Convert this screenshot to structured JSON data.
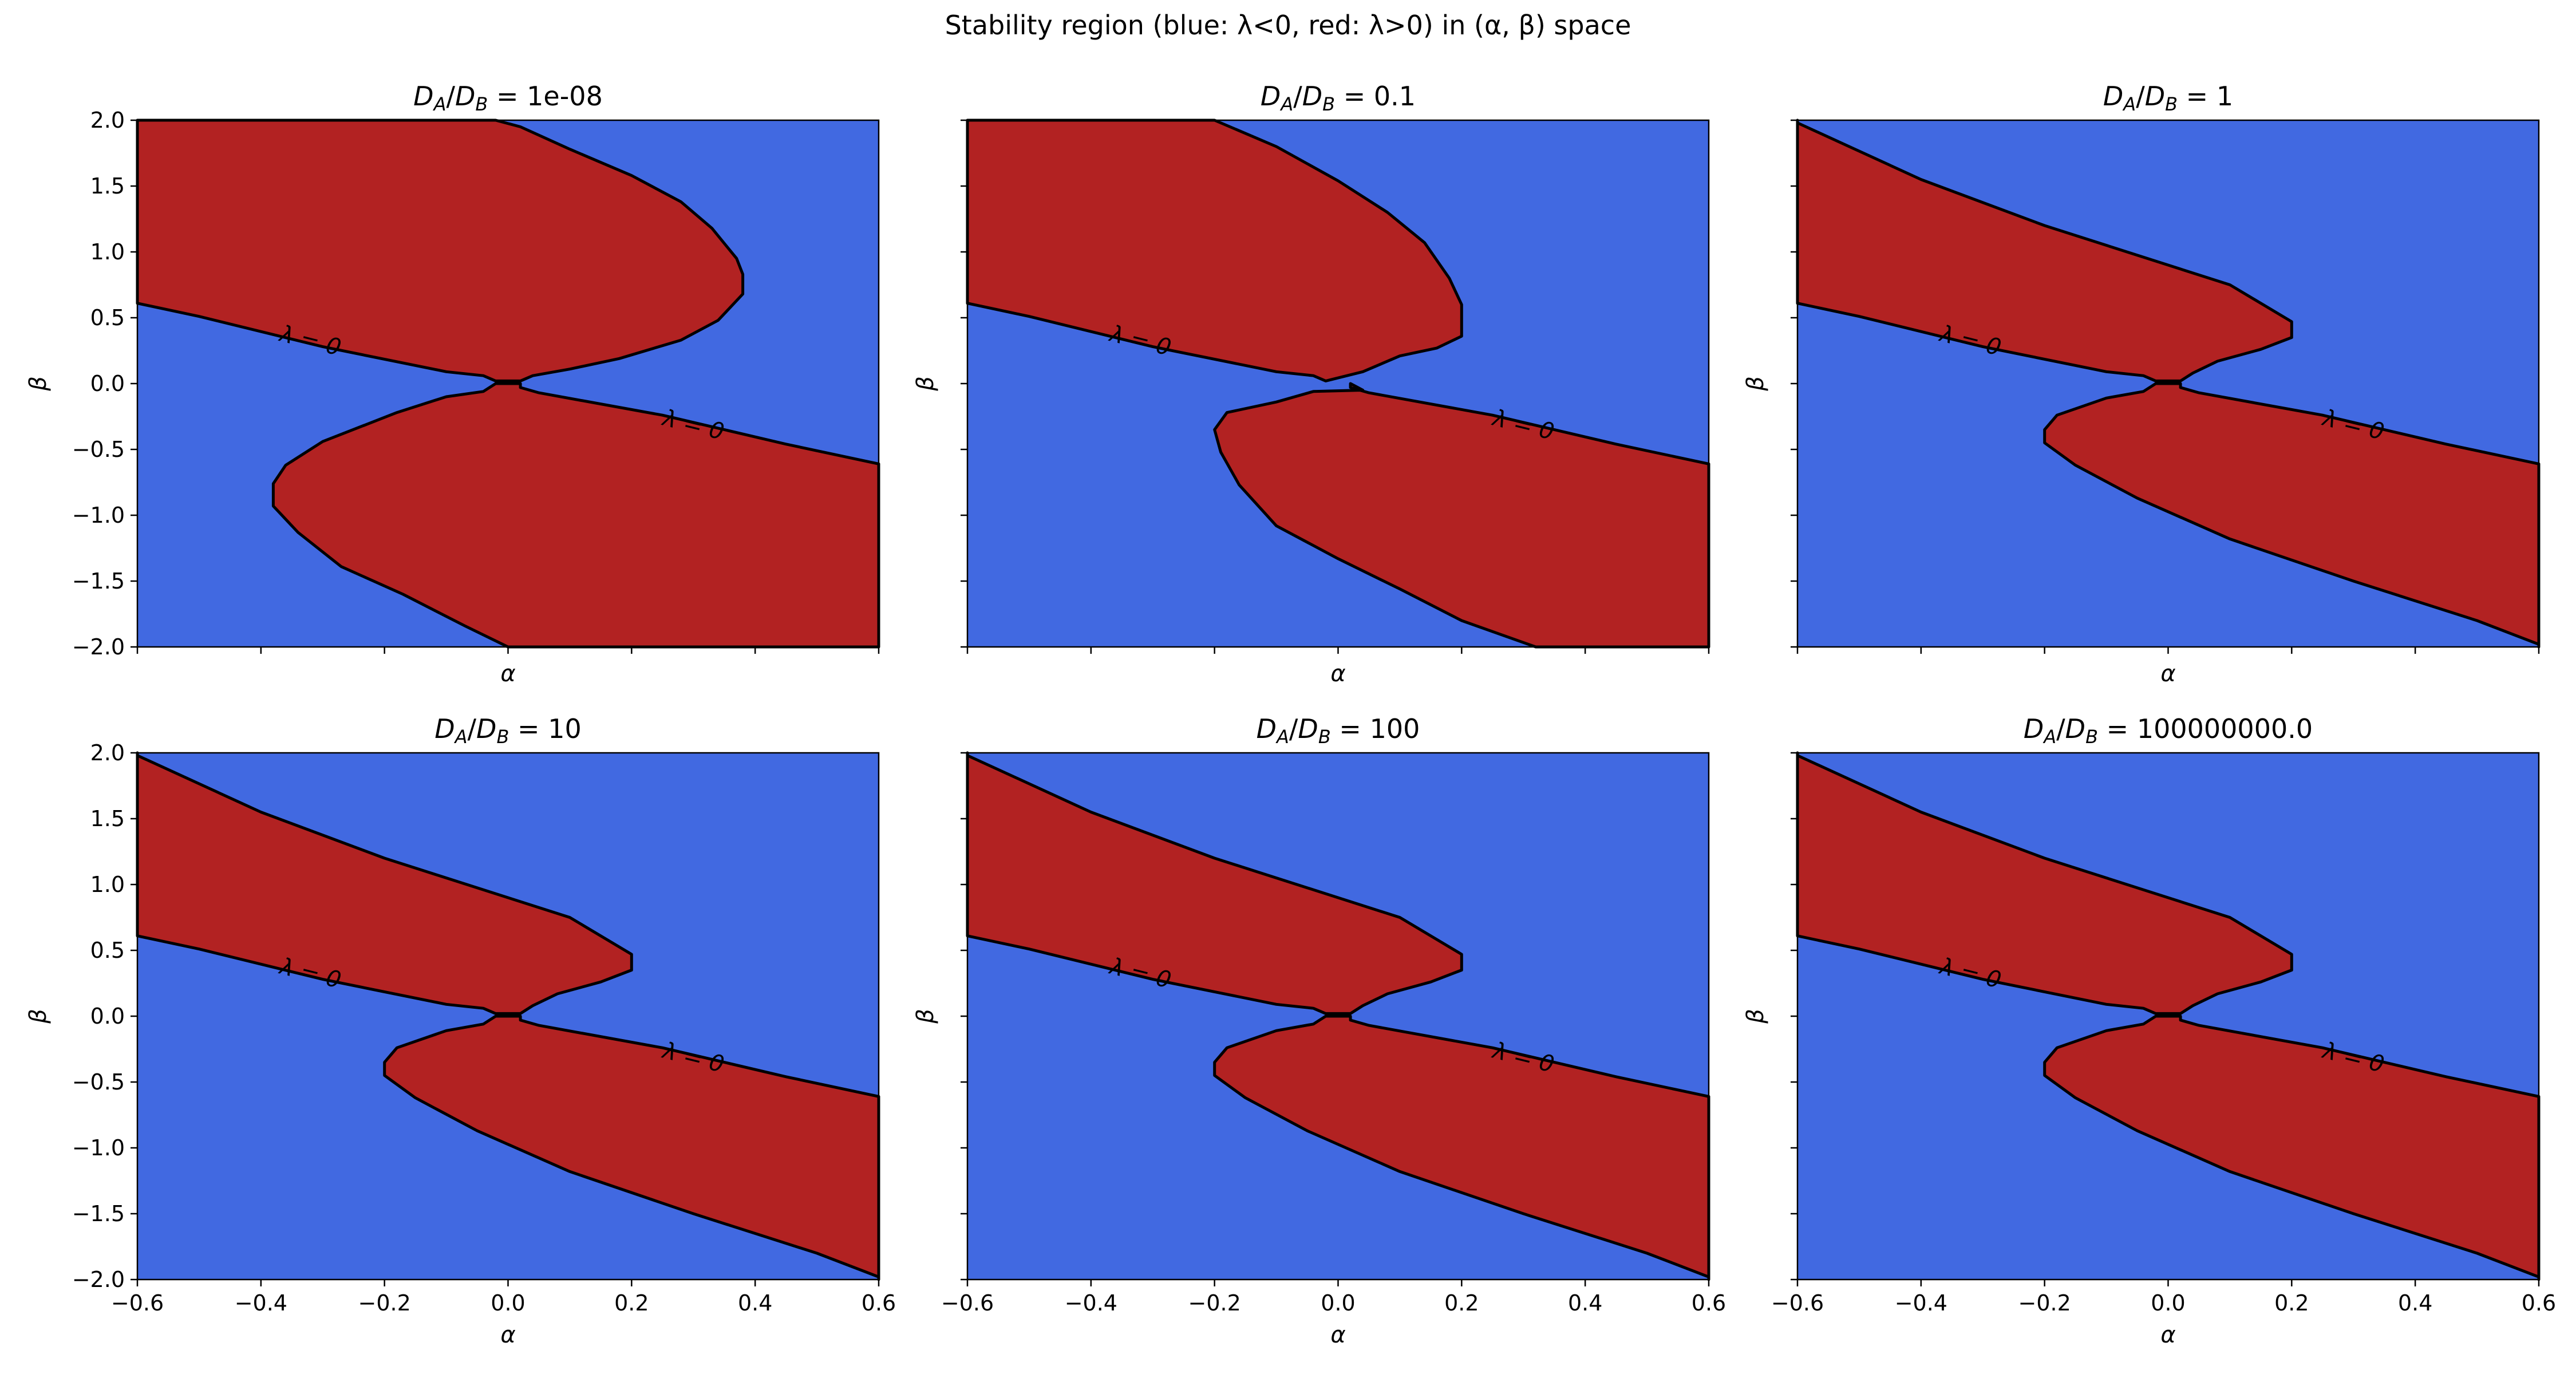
{
  "figure": {
    "title": "Stability region (blue: λ<0, red: λ>0) in (α, β) space"
  },
  "colors": {
    "stable": "#4169e1",
    "unstable": "#b22222",
    "contour": "#000000"
  },
  "chart_data": [
    {
      "type": "heatmap",
      "title": "D_A/D_B = 1e-08",
      "ratio": "1e-08",
      "xlabel": "α",
      "ylabel": "β",
      "xlim": [
        -0.6,
        0.6
      ],
      "ylim": [
        -2.0,
        2.0
      ],
      "x_ticks": [
        -0.6,
        -0.4,
        -0.2,
        0.0,
        0.2,
        0.4,
        0.6
      ],
      "y_ticks": [
        -2.0,
        -1.5,
        -1.0,
        -0.5,
        0.0,
        0.5,
        1.0,
        1.5,
        2.0
      ],
      "show_xticklabels": false,
      "show_yticklabels": true,
      "regions": {
        "blue": "λ<0",
        "red": "λ>0"
      },
      "contour_label": "λ = 0",
      "upper_region": [
        [
          -0.6,
          2.0
        ],
        [
          -0.02,
          2.0
        ],
        [
          0.02,
          1.95
        ],
        [
          0.1,
          1.78
        ],
        [
          0.2,
          1.58
        ],
        [
          0.28,
          1.38
        ],
        [
          0.33,
          1.18
        ],
        [
          0.37,
          0.95
        ],
        [
          0.38,
          0.83
        ],
        [
          0.38,
          0.68
        ],
        [
          0.34,
          0.48
        ],
        [
          0.28,
          0.33
        ],
        [
          0.18,
          0.19
        ],
        [
          0.1,
          0.11
        ],
        [
          0.04,
          0.06
        ],
        [
          0.02,
          0.02
        ],
        [
          -0.02,
          0.02
        ],
        [
          -0.04,
          0.06
        ],
        [
          -0.1,
          0.09
        ],
        [
          -0.3,
          0.28
        ],
        [
          -0.5,
          0.51
        ],
        [
          -0.6,
          0.61
        ]
      ],
      "lower_region": [
        [
          0.6,
          -0.61
        ],
        [
          0.45,
          -0.46
        ],
        [
          0.25,
          -0.24
        ],
        [
          0.05,
          -0.07
        ],
        [
          0.02,
          -0.03
        ],
        [
          0.02,
          0.0
        ],
        [
          -0.02,
          0.0
        ],
        [
          -0.04,
          -0.06
        ],
        [
          -0.1,
          -0.1
        ],
        [
          -0.18,
          -0.22
        ],
        [
          -0.3,
          -0.44
        ],
        [
          -0.36,
          -0.62
        ],
        [
          -0.38,
          -0.76
        ],
        [
          -0.38,
          -0.93
        ],
        [
          -0.34,
          -1.13
        ],
        [
          -0.27,
          -1.39
        ],
        [
          -0.17,
          -1.6
        ],
        [
          -0.07,
          -1.84
        ],
        [
          0.0,
          -2.0
        ],
        [
          0.6,
          -2.0
        ]
      ],
      "contour_labels": [
        [
          -0.32,
          0.32
        ],
        [
          0.3,
          -0.32
        ]
      ]
    },
    {
      "type": "heatmap",
      "title": "D_A/D_B = 0.1",
      "ratio": "0.1",
      "xlabel": "α",
      "ylabel": "β",
      "xlim": [
        -0.6,
        0.6
      ],
      "ylim": [
        -2.0,
        2.0
      ],
      "x_ticks": [
        -0.6,
        -0.4,
        -0.2,
        0.0,
        0.2,
        0.4,
        0.6
      ],
      "y_ticks": [
        -2.0,
        -1.5,
        -1.0,
        -0.5,
        0.0,
        0.5,
        1.0,
        1.5,
        2.0
      ],
      "show_xticklabels": false,
      "show_yticklabels": false,
      "regions": {
        "blue": "λ<0",
        "red": "λ>0"
      },
      "contour_label": "λ = 0",
      "upper_region": [
        [
          -0.6,
          2.0
        ],
        [
          -0.2,
          2.0
        ],
        [
          -0.1,
          1.8
        ],
        [
          0.0,
          1.54
        ],
        [
          0.08,
          1.3
        ],
        [
          0.14,
          1.07
        ],
        [
          0.18,
          0.8
        ],
        [
          0.2,
          0.6
        ],
        [
          0.2,
          0.36
        ],
        [
          0.16,
          0.27
        ],
        [
          0.1,
          0.21
        ],
        [
          0.04,
          0.09
        ],
        [
          -0.02,
          0.02
        ],
        [
          -0.04,
          0.06
        ],
        [
          -0.1,
          0.09
        ],
        [
          -0.3,
          0.28
        ],
        [
          -0.5,
          0.51
        ],
        [
          -0.6,
          0.61
        ]
      ],
      "lower_region": [
        [
          0.6,
          -0.61
        ],
        [
          0.45,
          -0.46
        ],
        [
          0.25,
          -0.24
        ],
        [
          0.05,
          -0.07
        ],
        [
          0.02,
          -0.03
        ],
        [
          0.02,
          0.0
        ],
        [
          0.04,
          -0.05
        ],
        [
          -0.04,
          -0.06
        ],
        [
          -0.1,
          -0.14
        ],
        [
          -0.18,
          -0.22
        ],
        [
          -0.2,
          -0.35
        ],
        [
          -0.19,
          -0.52
        ],
        [
          -0.16,
          -0.77
        ],
        [
          -0.1,
          -1.08
        ],
        [
          0.0,
          -1.33
        ],
        [
          0.1,
          -1.56
        ],
        [
          0.2,
          -1.8
        ],
        [
          0.32,
          -2.0
        ],
        [
          0.6,
          -2.0
        ]
      ],
      "contour_labels": [
        [
          -0.32,
          0.32
        ],
        [
          0.3,
          -0.32
        ]
      ]
    },
    {
      "type": "heatmap",
      "title": "D_A/D_B = 1",
      "ratio": "1",
      "xlabel": "α",
      "ylabel": "β",
      "xlim": [
        -0.6,
        0.6
      ],
      "ylim": [
        -2.0,
        2.0
      ],
      "x_ticks": [
        -0.6,
        -0.4,
        -0.2,
        0.0,
        0.2,
        0.4,
        0.6
      ],
      "y_ticks": [
        -2.0,
        -1.5,
        -1.0,
        -0.5,
        0.0,
        0.5,
        1.0,
        1.5,
        2.0
      ],
      "show_xticklabels": false,
      "show_yticklabels": false,
      "regions": {
        "blue": "λ<0",
        "red": "λ>0"
      },
      "contour_label": "λ = 0",
      "upper_region": [
        [
          -0.6,
          2.0
        ],
        [
          -0.6,
          1.98
        ],
        [
          -0.4,
          1.55
        ],
        [
          -0.2,
          1.2
        ],
        [
          0.0,
          0.9
        ],
        [
          0.1,
          0.75
        ],
        [
          0.2,
          0.47
        ],
        [
          0.2,
          0.35
        ],
        [
          0.15,
          0.26
        ],
        [
          0.08,
          0.17
        ],
        [
          0.04,
          0.08
        ],
        [
          0.02,
          0.02
        ],
        [
          -0.02,
          0.02
        ],
        [
          -0.04,
          0.06
        ],
        [
          -0.1,
          0.09
        ],
        [
          -0.3,
          0.28
        ],
        [
          -0.5,
          0.51
        ],
        [
          -0.6,
          0.61
        ]
      ],
      "lower_region": [
        [
          0.6,
          -0.61
        ],
        [
          0.45,
          -0.46
        ],
        [
          0.25,
          -0.24
        ],
        [
          0.05,
          -0.07
        ],
        [
          0.02,
          -0.03
        ],
        [
          0.02,
          0.0
        ],
        [
          -0.02,
          0.0
        ],
        [
          -0.04,
          -0.06
        ],
        [
          -0.1,
          -0.11
        ],
        [
          -0.18,
          -0.24
        ],
        [
          -0.2,
          -0.35
        ],
        [
          -0.2,
          -0.45
        ],
        [
          -0.15,
          -0.62
        ],
        [
          -0.05,
          -0.87
        ],
        [
          0.1,
          -1.18
        ],
        [
          0.3,
          -1.5
        ],
        [
          0.5,
          -1.8
        ],
        [
          0.6,
          -1.98
        ],
        [
          0.6,
          -2.0
        ]
      ],
      "contour_labels": [
        [
          -0.32,
          0.32
        ],
        [
          0.3,
          -0.32
        ]
      ]
    },
    {
      "type": "heatmap",
      "title": "D_A/D_B = 10",
      "ratio": "10",
      "xlabel": "α",
      "ylabel": "β",
      "xlim": [
        -0.6,
        0.6
      ],
      "ylim": [
        -2.0,
        2.0
      ],
      "x_ticks": [
        -0.6,
        -0.4,
        -0.2,
        0.0,
        0.2,
        0.4,
        0.6
      ],
      "y_ticks": [
        -2.0,
        -1.5,
        -1.0,
        -0.5,
        0.0,
        0.5,
        1.0,
        1.5,
        2.0
      ],
      "show_xticklabels": true,
      "show_yticklabels": true,
      "regions": {
        "blue": "λ<0",
        "red": "λ>0"
      },
      "contour_label": "λ = 0",
      "upper_region": [
        [
          -0.6,
          2.0
        ],
        [
          -0.6,
          1.98
        ],
        [
          -0.4,
          1.55
        ],
        [
          -0.2,
          1.2
        ],
        [
          0.0,
          0.9
        ],
        [
          0.1,
          0.75
        ],
        [
          0.2,
          0.47
        ],
        [
          0.2,
          0.35
        ],
        [
          0.15,
          0.26
        ],
        [
          0.08,
          0.17
        ],
        [
          0.04,
          0.08
        ],
        [
          0.02,
          0.02
        ],
        [
          -0.02,
          0.02
        ],
        [
          -0.04,
          0.06
        ],
        [
          -0.1,
          0.09
        ],
        [
          -0.3,
          0.28
        ],
        [
          -0.5,
          0.51
        ],
        [
          -0.6,
          0.61
        ]
      ],
      "lower_region": [
        [
          0.6,
          -0.61
        ],
        [
          0.45,
          -0.46
        ],
        [
          0.25,
          -0.24
        ],
        [
          0.05,
          -0.07
        ],
        [
          0.02,
          -0.03
        ],
        [
          0.02,
          0.0
        ],
        [
          -0.02,
          0.0
        ],
        [
          -0.04,
          -0.06
        ],
        [
          -0.1,
          -0.11
        ],
        [
          -0.18,
          -0.24
        ],
        [
          -0.2,
          -0.35
        ],
        [
          -0.2,
          -0.45
        ],
        [
          -0.15,
          -0.62
        ],
        [
          -0.05,
          -0.87
        ],
        [
          0.1,
          -1.18
        ],
        [
          0.3,
          -1.5
        ],
        [
          0.5,
          -1.8
        ],
        [
          0.6,
          -1.98
        ],
        [
          0.6,
          -2.0
        ]
      ],
      "contour_labels": [
        [
          -0.32,
          0.32
        ],
        [
          0.3,
          -0.32
        ]
      ]
    },
    {
      "type": "heatmap",
      "title": "D_A/D_B = 100",
      "ratio": "100",
      "xlabel": "α",
      "ylabel": "β",
      "xlim": [
        -0.6,
        0.6
      ],
      "ylim": [
        -2.0,
        2.0
      ],
      "x_ticks": [
        -0.6,
        -0.4,
        -0.2,
        0.0,
        0.2,
        0.4,
        0.6
      ],
      "y_ticks": [
        -2.0,
        -1.5,
        -1.0,
        -0.5,
        0.0,
        0.5,
        1.0,
        1.5,
        2.0
      ],
      "show_xticklabels": true,
      "show_yticklabels": false,
      "regions": {
        "blue": "λ<0",
        "red": "λ>0"
      },
      "contour_label": "λ = 0",
      "upper_region": [
        [
          -0.6,
          2.0
        ],
        [
          -0.6,
          1.98
        ],
        [
          -0.4,
          1.55
        ],
        [
          -0.2,
          1.2
        ],
        [
          0.0,
          0.9
        ],
        [
          0.1,
          0.75
        ],
        [
          0.2,
          0.47
        ],
        [
          0.2,
          0.35
        ],
        [
          0.15,
          0.26
        ],
        [
          0.08,
          0.17
        ],
        [
          0.04,
          0.08
        ],
        [
          0.02,
          0.02
        ],
        [
          -0.02,
          0.02
        ],
        [
          -0.04,
          0.06
        ],
        [
          -0.1,
          0.09
        ],
        [
          -0.3,
          0.28
        ],
        [
          -0.5,
          0.51
        ],
        [
          -0.6,
          0.61
        ]
      ],
      "lower_region": [
        [
          0.6,
          -0.61
        ],
        [
          0.45,
          -0.46
        ],
        [
          0.25,
          -0.24
        ],
        [
          0.05,
          -0.07
        ],
        [
          0.02,
          -0.03
        ],
        [
          0.02,
          0.0
        ],
        [
          -0.02,
          0.0
        ],
        [
          -0.04,
          -0.06
        ],
        [
          -0.1,
          -0.11
        ],
        [
          -0.18,
          -0.24
        ],
        [
          -0.2,
          -0.35
        ],
        [
          -0.2,
          -0.45
        ],
        [
          -0.15,
          -0.62
        ],
        [
          -0.05,
          -0.87
        ],
        [
          0.1,
          -1.18
        ],
        [
          0.3,
          -1.5
        ],
        [
          0.5,
          -1.8
        ],
        [
          0.6,
          -1.98
        ],
        [
          0.6,
          -2.0
        ]
      ],
      "contour_labels": [
        [
          -0.32,
          0.32
        ],
        [
          0.3,
          -0.32
        ]
      ]
    },
    {
      "type": "heatmap",
      "title": "D_A/D_B = 100000000.0",
      "ratio": "100000000.0",
      "xlabel": "α",
      "ylabel": "β",
      "xlim": [
        -0.6,
        0.6
      ],
      "ylim": [
        -2.0,
        2.0
      ],
      "x_ticks": [
        -0.6,
        -0.4,
        -0.2,
        0.0,
        0.2,
        0.4,
        0.6
      ],
      "y_ticks": [
        -2.0,
        -1.5,
        -1.0,
        -0.5,
        0.0,
        0.5,
        1.0,
        1.5,
        2.0
      ],
      "show_xticklabels": true,
      "show_yticklabels": false,
      "regions": {
        "blue": "λ<0",
        "red": "λ>0"
      },
      "contour_label": "λ = 0",
      "upper_region": [
        [
          -0.6,
          2.0
        ],
        [
          -0.6,
          1.98
        ],
        [
          -0.4,
          1.55
        ],
        [
          -0.2,
          1.2
        ],
        [
          0.0,
          0.9
        ],
        [
          0.1,
          0.75
        ],
        [
          0.2,
          0.47
        ],
        [
          0.2,
          0.35
        ],
        [
          0.15,
          0.26
        ],
        [
          0.08,
          0.17
        ],
        [
          0.04,
          0.08
        ],
        [
          0.02,
          0.02
        ],
        [
          -0.02,
          0.02
        ],
        [
          -0.04,
          0.06
        ],
        [
          -0.1,
          0.09
        ],
        [
          -0.3,
          0.28
        ],
        [
          -0.5,
          0.51
        ],
        [
          -0.6,
          0.61
        ]
      ],
      "lower_region": [
        [
          0.6,
          -0.61
        ],
        [
          0.45,
          -0.46
        ],
        [
          0.25,
          -0.24
        ],
        [
          0.05,
          -0.07
        ],
        [
          0.02,
          -0.03
        ],
        [
          0.02,
          0.0
        ],
        [
          -0.02,
          0.0
        ],
        [
          -0.04,
          -0.06
        ],
        [
          -0.1,
          -0.11
        ],
        [
          -0.18,
          -0.24
        ],
        [
          -0.2,
          -0.35
        ],
        [
          -0.2,
          -0.45
        ],
        [
          -0.15,
          -0.62
        ],
        [
          -0.05,
          -0.87
        ],
        [
          0.1,
          -1.18
        ],
        [
          0.3,
          -1.5
        ],
        [
          0.5,
          -1.8
        ],
        [
          0.6,
          -1.98
        ],
        [
          0.6,
          -2.0
        ]
      ],
      "contour_labels": [
        [
          -0.32,
          0.32
        ],
        [
          0.3,
          -0.32
        ]
      ]
    }
  ]
}
